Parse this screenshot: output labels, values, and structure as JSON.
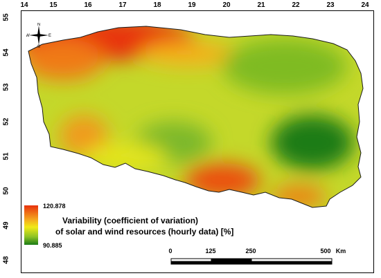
{
  "axes": {
    "longitude_ticks": [
      "14",
      "15",
      "16",
      "17",
      "18",
      "19",
      "20",
      "21",
      "22",
      "23",
      "24"
    ],
    "latitude_ticks": [
      "55",
      "54",
      "53",
      "52",
      "51",
      "50",
      "49",
      "48"
    ]
  },
  "compass": {
    "n": "N",
    "s": "S",
    "e": "E",
    "w": "W"
  },
  "legend": {
    "max_value": "120.878",
    "min_value": "90.885",
    "title_line1": "Variability (coefficient of variation)",
    "title_line2": "of solar and wind resources (hourly data) [%]",
    "colors": {
      "high": "#e8320c",
      "mid_high": "#f4a41e",
      "mid": "#f1ea17",
      "mid_low": "#8cc225",
      "low": "#1a7a16"
    }
  },
  "scale_bar": {
    "labels": [
      "0",
      "125",
      "250",
      "500"
    ],
    "unit": "Km"
  }
}
